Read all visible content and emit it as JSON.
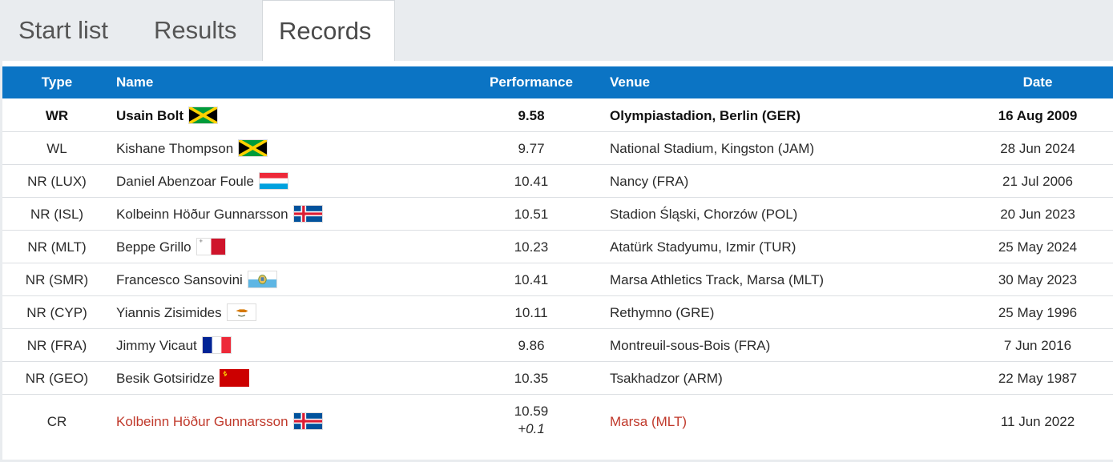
{
  "tabs": [
    {
      "label": "Start list",
      "active": false
    },
    {
      "label": "Results",
      "active": false
    },
    {
      "label": "Records",
      "active": true
    }
  ],
  "table": {
    "headers": {
      "type": "Type",
      "name": "Name",
      "performance": "Performance",
      "venue": "Venue",
      "date": "Date"
    },
    "rows": [
      {
        "type": "WR",
        "name": "Usain Bolt",
        "flag": "jamaica-flag-icon",
        "performance": "9.58",
        "venue": "Olympiastadion, Berlin (GER)",
        "date": "16 Aug 2009"
      },
      {
        "type": "WL",
        "name": "Kishane Thompson",
        "flag": "jamaica-flag-icon",
        "performance": "9.77",
        "venue": "National Stadium, Kingston (JAM)",
        "date": "28 Jun 2024"
      },
      {
        "type": "NR (LUX)",
        "name": "Daniel Abenzoar Foule",
        "flag": "luxembourg-flag-icon",
        "performance": "10.41",
        "venue": "Nancy (FRA)",
        "date": "21 Jul 2006"
      },
      {
        "type": "NR (ISL)",
        "name": "Kolbeinn Höður Gunnarsson",
        "flag": "iceland-flag-icon",
        "performance": "10.51",
        "venue": "Stadion Śląski, Chorzów (POL)",
        "date": "20 Jun 2023"
      },
      {
        "type": "NR (MLT)",
        "name": "Beppe Grillo",
        "flag": "malta-flag-icon",
        "performance": "10.23",
        "venue": "Atatürk Stadyumu, Izmir (TUR)",
        "date": "25 May 2024"
      },
      {
        "type": "NR (SMR)",
        "name": "Francesco Sansovini",
        "flag": "san-marino-flag-icon",
        "performance": "10.41",
        "venue": "Marsa Athletics Track, Marsa (MLT)",
        "date": "30 May 2023"
      },
      {
        "type": "NR (CYP)",
        "name": "Yiannis Zisimides",
        "flag": "cyprus-flag-icon",
        "performance": "10.11",
        "venue": "Rethymno (GRE)",
        "date": "25 May 1996"
      },
      {
        "type": "NR (FRA)",
        "name": "Jimmy Vicaut",
        "flag": "france-flag-icon",
        "performance": "9.86",
        "venue": "Montreuil-sous-Bois (FRA)",
        "date": "7 Jun 2016"
      },
      {
        "type": "NR (GEO)",
        "name": "Besik Gotsiridze",
        "flag": "ussr-flag-icon",
        "performance": "10.35",
        "venue": "Tsakhadzor (ARM)",
        "date": "22 May 1987"
      },
      {
        "type": "CR",
        "name": "Kolbeinn Höður Gunnarsson",
        "flag": "iceland-flag-icon",
        "performance": "10.59",
        "wind": "+0.1",
        "venue": "Marsa (MLT)",
        "date": "11 Jun 2022"
      }
    ]
  },
  "colors": {
    "header_bg": "#0b74c4",
    "highlight_text": "#c0392b"
  }
}
